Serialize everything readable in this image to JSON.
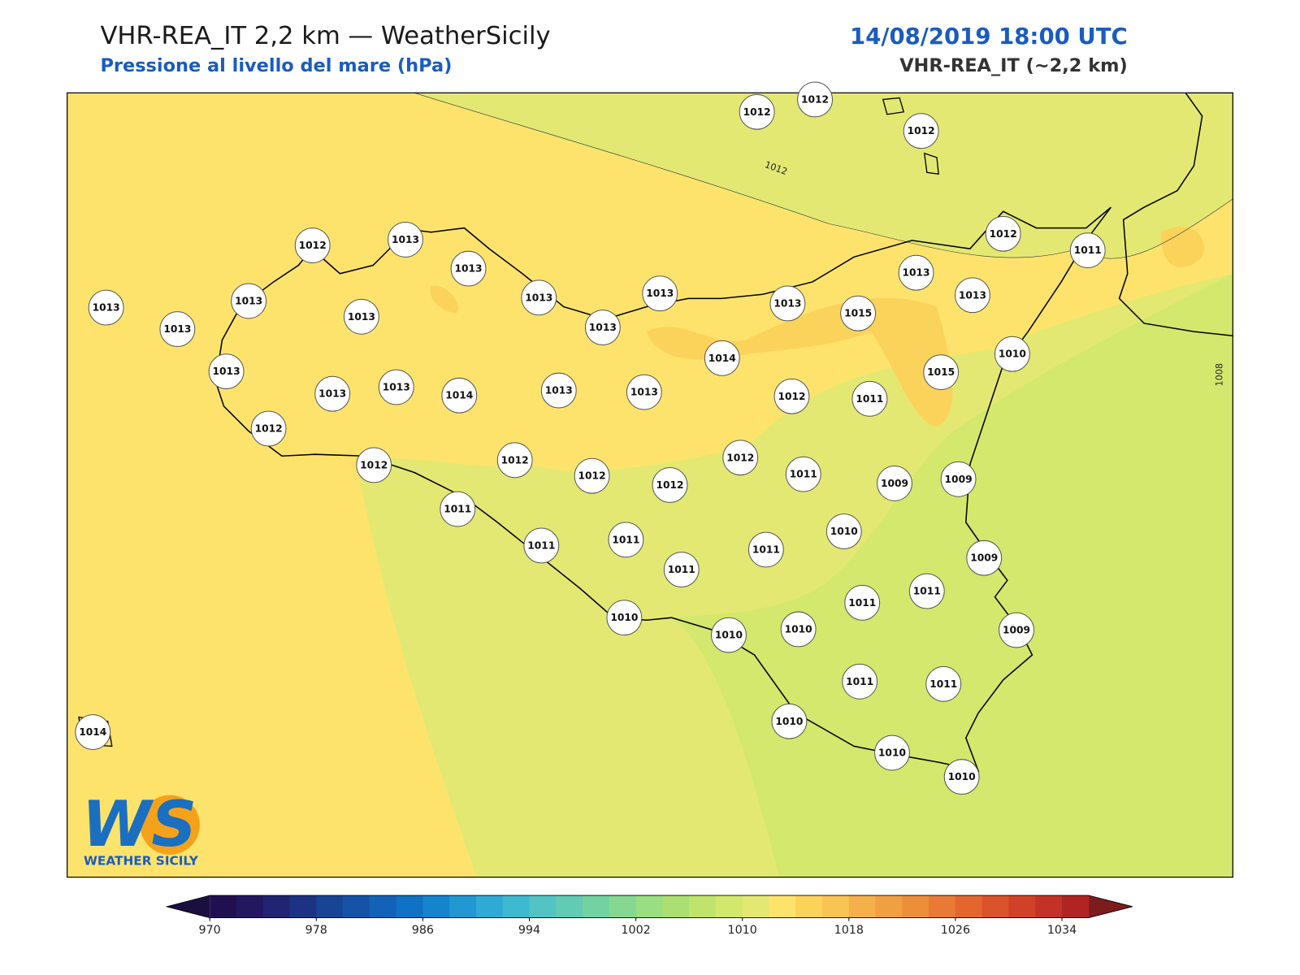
{
  "header": {
    "title": "VHR-REA_IT 2,2 km — WeatherSicily",
    "subtitle": "Pressione al livello del mare (hPa)",
    "date": "14/08/2019 18:00 UTC",
    "model": "VHR-REA_IT (~2,2 km)"
  },
  "map": {
    "stations": [
      1012,
      1012,
      1012,
      1012,
      1013,
      1013,
      1013,
      1013,
      1013,
      1013,
      1013,
      1013,
      1013,
      1013,
      1015,
      1013,
      1012,
      1011,
      1013,
      1010,
      1014,
      1015,
      1013,
      1013,
      1013,
      1014,
      1013,
      1013,
      1012,
      1011,
      1012,
      1012,
      1012,
      1012,
      1012,
      1012,
      1011,
      1009,
      1009,
      1011,
      1011,
      1011,
      1011,
      1011,
      1010,
      1009,
      1011,
      1011,
      1010,
      1010,
      1010,
      1009,
      1011,
      1011,
      1010,
      1010,
      1010,
      1014
    ],
    "contour_labels": [
      1012,
      1008
    ]
  },
  "colorbar": {
    "range": [
      970,
      1036
    ],
    "ticks": [
      970,
      978,
      986,
      994,
      1002,
      1010,
      1018,
      1026,
      1034
    ],
    "colors": [
      "#21104f",
      "#231860",
      "#202472",
      "#1c3384",
      "#184496",
      "#1553a8",
      "#1262b8",
      "#0f72c4",
      "#1484cc",
      "#2198d2",
      "#2eaad4",
      "#3ebad0",
      "#52c4c4",
      "#62cbb3",
      "#73d2a2",
      "#86d890",
      "#99de80",
      "#acdf72",
      "#bfe36b",
      "#d2e86c",
      "#e3e872",
      "#fde36c",
      "#fbd35a",
      "#f8c453",
      "#f4b04a",
      "#f09f42",
      "#ed8e3b",
      "#e97a35",
      "#e3662f",
      "#da532b",
      "#d04228",
      "#c33226",
      "#b02424"
    ],
    "under": "#1a0f3f",
    "over": "#7c1c1c"
  },
  "logo": {
    "mark": "WS",
    "name": "WEATHER SICILY"
  }
}
